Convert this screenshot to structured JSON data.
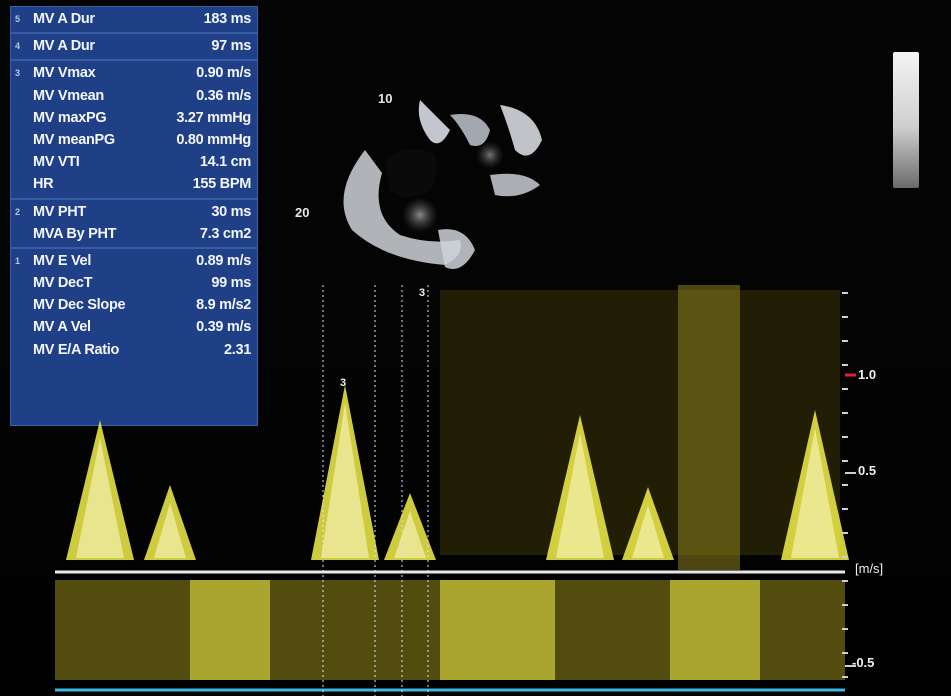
{
  "measurements": {
    "groups": [
      {
        "index": "5",
        "rows": [
          {
            "label": "MV A Dur",
            "value": "183 ms"
          }
        ]
      },
      {
        "index": "4",
        "rows": [
          {
            "label": "MV A Dur",
            "value": "97 ms"
          }
        ]
      },
      {
        "index": "3",
        "rows": [
          {
            "label": "MV Vmax",
            "value": "0.90 m/s"
          },
          {
            "label": "MV Vmean",
            "value": "0.36 m/s"
          },
          {
            "label": "MV maxPG",
            "value": "3.27 mmHg"
          },
          {
            "label": "MV meanPG",
            "value": "0.80 mmHg"
          },
          {
            "label": "MV VTI",
            "value": "14.1 cm"
          },
          {
            "label": "HR",
            "value": "155 BPM"
          }
        ]
      },
      {
        "index": "2",
        "rows": [
          {
            "label": "MV PHT",
            "value": "30 ms"
          },
          {
            "label": "MVA By PHT",
            "value": "7.3 cm2"
          }
        ]
      },
      {
        "index": "1",
        "rows": [
          {
            "label": "MV E Vel",
            "value": "0.89 m/s"
          },
          {
            "label": "MV DecT",
            "value": "99 ms"
          },
          {
            "label": "MV Dec Slope",
            "value": "8.9 m/s2"
          },
          {
            "label": "MV A Vel",
            "value": "0.39 m/s"
          },
          {
            "label": "MV E/A Ratio",
            "value": "2.31"
          }
        ]
      }
    ]
  },
  "echo": {
    "depth_top": "10",
    "depth_bottom": "20"
  },
  "doppler": {
    "scale": {
      "top": "1.0",
      "mid": "0.5",
      "unit": "[m/s]",
      "bottom": "-0.5"
    },
    "caliper_marker": "3",
    "caliper_marker_peak": "3"
  },
  "colors": {
    "panel_bg": "#1f3f86",
    "spectrum": "#f2ee4a",
    "baseline": "#e8e8e8",
    "scale_marker": "#e0202a"
  }
}
